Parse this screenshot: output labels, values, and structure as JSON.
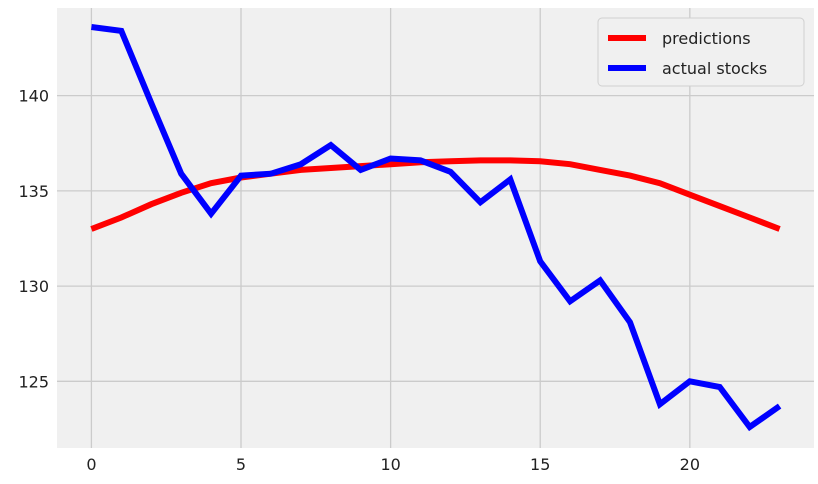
{
  "chart_data": {
    "type": "line",
    "title": "",
    "xlabel": "",
    "ylabel": "",
    "x": [
      0,
      1,
      2,
      3,
      4,
      5,
      6,
      7,
      8,
      9,
      10,
      11,
      12,
      13,
      14,
      15,
      16,
      17,
      18,
      19,
      20,
      21,
      22,
      23
    ],
    "series": [
      {
        "name": "predictions",
        "color": "#ff0000",
        "values": [
          133.0,
          133.6,
          134.3,
          134.9,
          135.4,
          135.7,
          135.9,
          136.1,
          136.2,
          136.3,
          136.4,
          136.5,
          136.55,
          136.6,
          136.6,
          136.55,
          136.4,
          136.1,
          135.8,
          135.4,
          134.8,
          134.2,
          133.6,
          133.0
        ]
      },
      {
        "name": "actual stocks",
        "color": "#0000ff",
        "values": [
          143.6,
          143.4,
          139.6,
          135.9,
          133.8,
          135.8,
          135.9,
          136.4,
          137.4,
          136.1,
          136.7,
          136.6,
          136.0,
          134.4,
          135.6,
          131.3,
          129.2,
          130.3,
          128.1,
          123.8,
          125.0,
          124.7,
          122.6,
          123.7
        ]
      }
    ],
    "xticks": [
      0,
      5,
      10,
      15,
      20
    ],
    "yticks": [
      125,
      130,
      135,
      140
    ],
    "xlim": [
      -1.15,
      24.15
    ],
    "ylim": [
      121.5,
      144.6
    ],
    "grid": true,
    "legend_position": "top-right",
    "colors": {
      "background": "#f0f0f0",
      "grid": "#cbcbcb"
    }
  }
}
